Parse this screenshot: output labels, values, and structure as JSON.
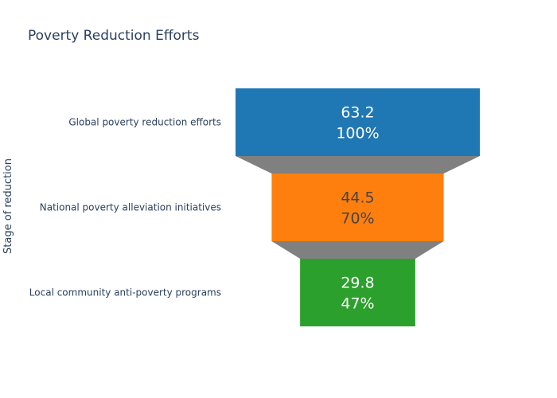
{
  "chart_data": {
    "type": "funnel",
    "title": "Poverty Reduction Efforts",
    "ylabel": "Stage of reduction",
    "categories": [
      "Global poverty reduction efforts",
      "National poverty alleviation initiatives",
      "Local community anti-poverty programs"
    ],
    "values": [
      63.2,
      44.5,
      29.8
    ],
    "percent_labels": [
      "100%",
      "70%",
      "47%"
    ],
    "colors": [
      "#1f77b4",
      "#ff7f0e",
      "#2ca02c"
    ],
    "text_colors": [
      "#ffffff",
      "#444444",
      "#ffffff"
    ],
    "connector_color": "#808080"
  }
}
